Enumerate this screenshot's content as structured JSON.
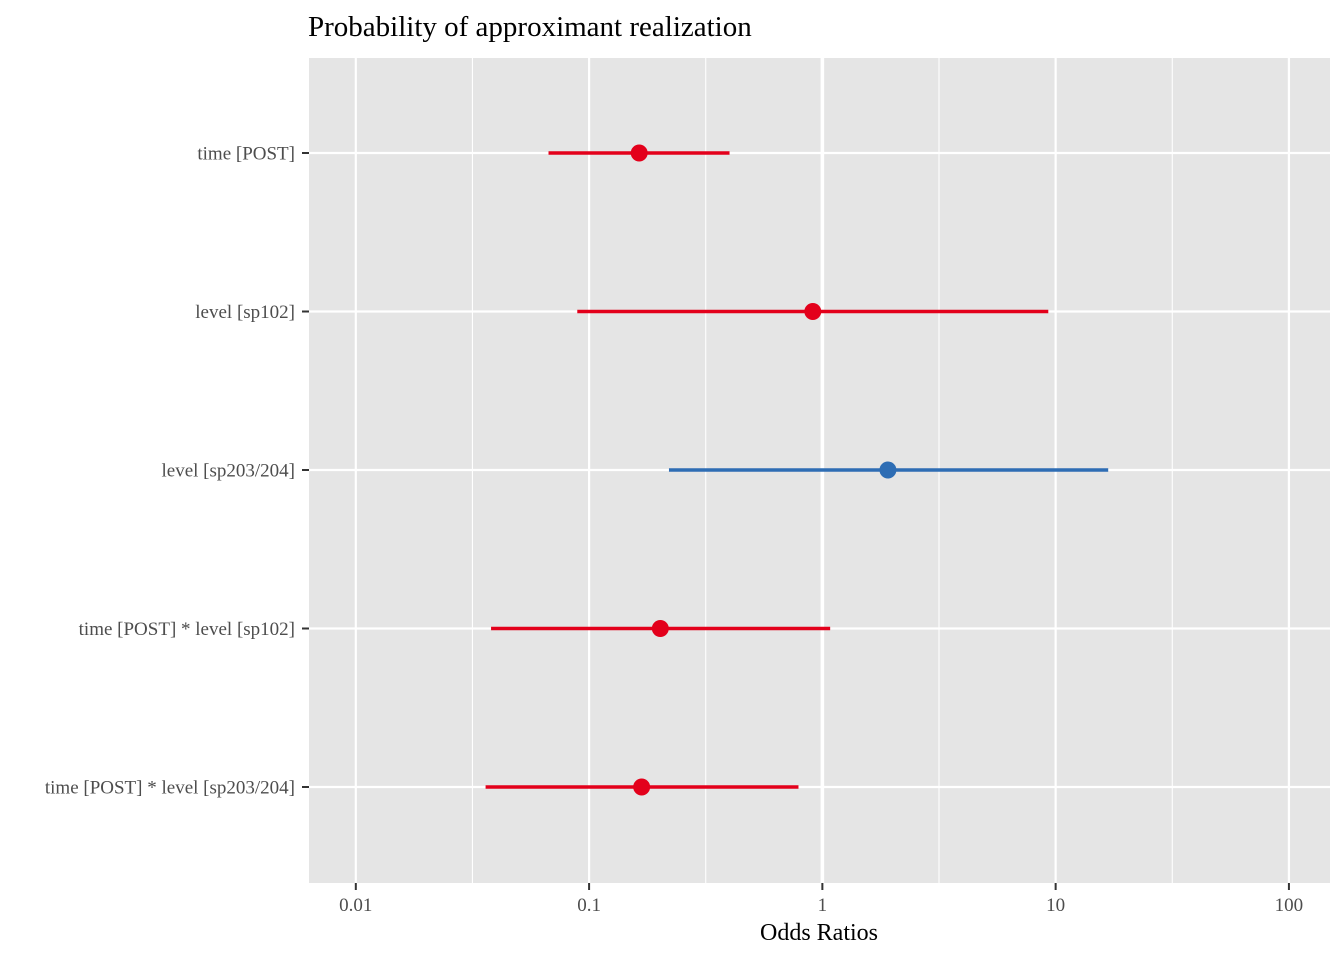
{
  "chart_data": {
    "type": "forest",
    "title": "Probability of approximant realization",
    "xlabel": "Odds Ratios",
    "ylabel": "",
    "x_scale": "log10",
    "xlim": [
      0.0063,
      150
    ],
    "x_ticks": [
      0.01,
      0.1,
      1,
      10,
      100
    ],
    "x_tick_labels": [
      "0.01",
      "0.1",
      "1",
      "10",
      "100"
    ],
    "grid": true,
    "terms": [
      {
        "label": "time [POST]",
        "estimate": 0.164,
        "ci_low": 0.067,
        "ci_high": 0.4,
        "color": "#e3001b"
      },
      {
        "label": "level [sp102]",
        "estimate": 0.91,
        "ci_low": 0.089,
        "ci_high": 9.3,
        "color": "#e3001b"
      },
      {
        "label": "level [sp203/204]",
        "estimate": 1.91,
        "ci_low": 0.22,
        "ci_high": 16.8,
        "color": "#2e6db4"
      },
      {
        "label": "time [POST] * level [sp102]",
        "estimate": 0.202,
        "ci_low": 0.038,
        "ci_high": 1.08,
        "color": "#e3001b"
      },
      {
        "label": "time [POST] * level [sp203/204]",
        "estimate": 0.168,
        "ci_low": 0.036,
        "ci_high": 0.79,
        "color": "#e3001b"
      }
    ]
  }
}
